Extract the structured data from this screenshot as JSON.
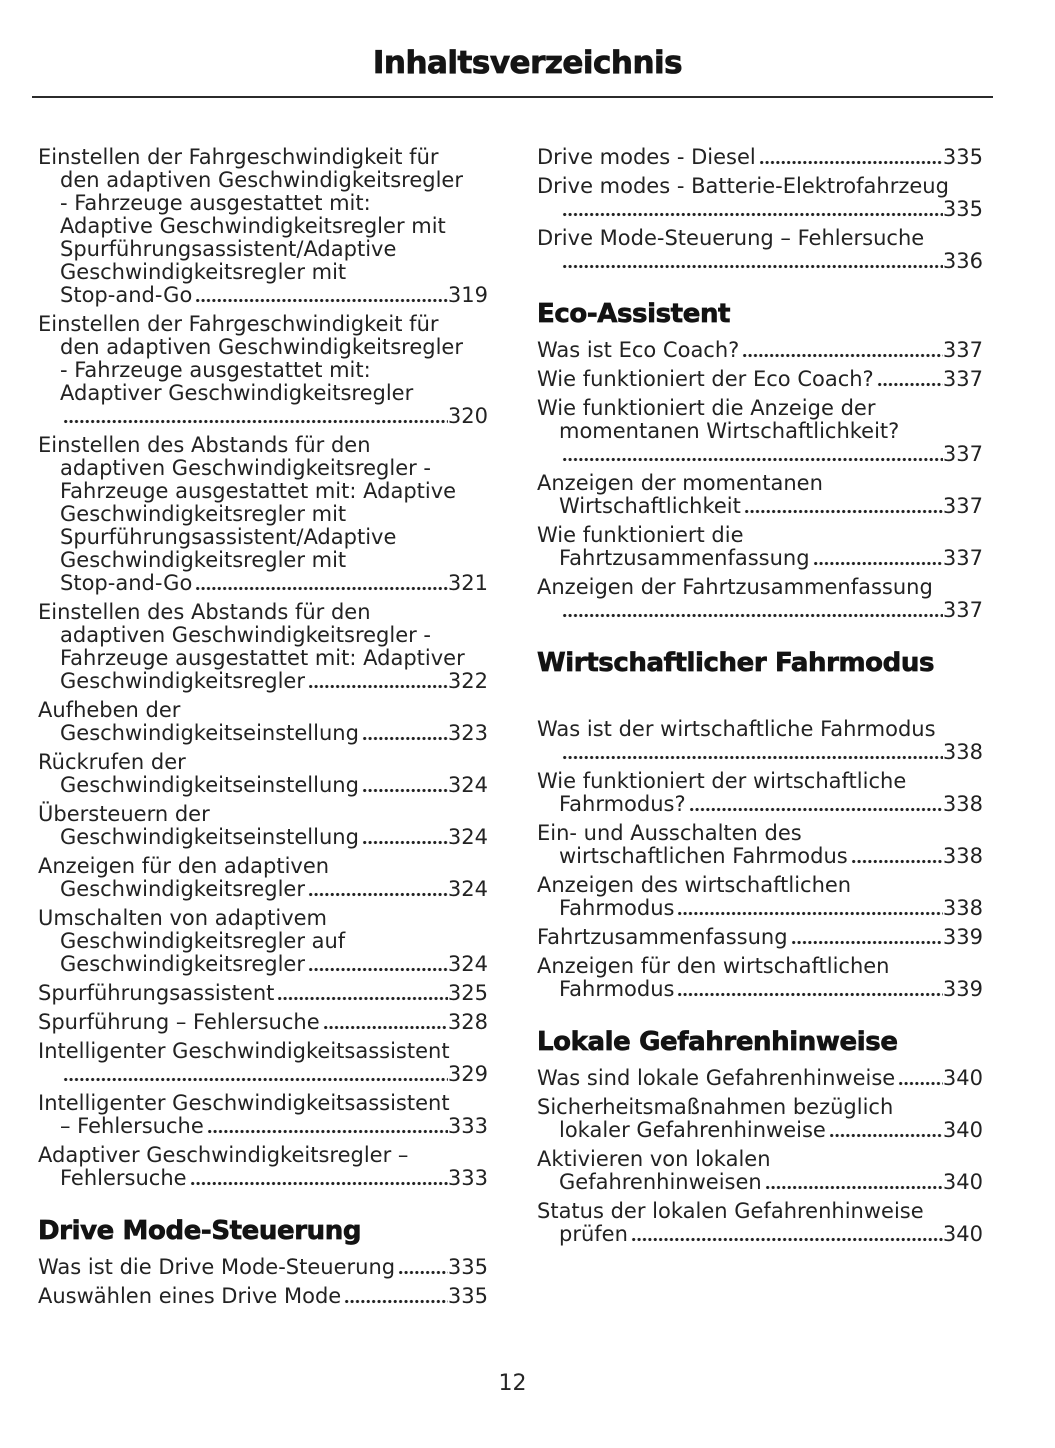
{
  "doc": {
    "title": "Inhaltsverzeichnis",
    "page_number": "12",
    "ink_color": "#222222"
  },
  "toc": {
    "columns": [
      {
        "name": "left",
        "items": [
          {
            "lines": [
              "Einstellen der Fahrgeschwindigkeit für",
              "den adaptiven Geschwindigkeitsregler",
              "- Fahrzeuge ausgestattet mit:",
              "Adaptive Geschwindigkeitsregler mit",
              "Spurführungsassistent/Adaptive",
              "Geschwindigkeitsregler mit",
              "Stop-and-Go"
            ],
            "page": "319"
          },
          {
            "lines": [
              "Einstellen der Fahrgeschwindigkeit für",
              "den adaptiven Geschwindigkeitsregler",
              "- Fahrzeuge ausgestattet mit:",
              "Adaptiver Geschwindigkeitsregler",
              ""
            ],
            "page": "320"
          },
          {
            "lines": [
              "Einstellen des Abstands für den",
              "adaptiven Geschwindigkeitsregler -",
              "Fahrzeuge ausgestattet mit: Adaptive",
              "Geschwindigkeitsregler mit",
              "Spurführungsassistent/Adaptive",
              "Geschwindigkeitsregler mit",
              "Stop-and-Go"
            ],
            "page": "321"
          },
          {
            "lines": [
              "Einstellen des Abstands für den",
              "adaptiven Geschwindigkeitsregler -",
              "Fahrzeuge ausgestattet mit: Adaptiver",
              "Geschwindigkeitsregler"
            ],
            "page": "322"
          },
          {
            "lines": [
              "Aufheben der",
              "Geschwindigkeitseinstellung"
            ],
            "page": "323"
          },
          {
            "lines": [
              "Rückrufen der",
              "Geschwindigkeitseinstellung"
            ],
            "page": "324"
          },
          {
            "lines": [
              "Übersteuern der",
              "Geschwindigkeitseinstellung"
            ],
            "page": "324"
          },
          {
            "lines": [
              "Anzeigen für den adaptiven",
              "Geschwindigkeitsregler"
            ],
            "page": "324"
          },
          {
            "lines": [
              "Umschalten von adaptivem",
              "Geschwindigkeitsregler auf",
              "Geschwindigkeitsregler"
            ],
            "page": "324"
          },
          {
            "lines": [
              "Spurführungsassistent"
            ],
            "page": "325"
          },
          {
            "lines": [
              "Spurführung – Fehlersuche"
            ],
            "page": "328"
          },
          {
            "lines": [
              "Intelligenter Geschwindigkeitsassistent",
              ""
            ],
            "page": "329"
          },
          {
            "lines": [
              "Intelligenter Geschwindigkeitsassistent",
              "– Fehlersuche"
            ],
            "page": "333"
          },
          {
            "lines": [
              "Adaptiver Geschwindigkeitsregler –",
              "Fehlersuche"
            ],
            "page": "333"
          },
          {
            "heading": "Drive Mode-Steuerung"
          },
          {
            "lines": [
              "Was ist die Drive Mode-Steuerung"
            ],
            "page": "335"
          },
          {
            "lines": [
              "Auswählen eines Drive Mode"
            ],
            "page": "335"
          }
        ]
      },
      {
        "name": "right",
        "items": [
          {
            "lines": [
              "Drive modes - Diesel"
            ],
            "page": "335"
          },
          {
            "lines": [
              "Drive modes - Batterie-Elektrofahrzeug",
              ""
            ],
            "page": "335"
          },
          {
            "lines": [
              "Drive Mode-Steuerung – Fehlersuche",
              ""
            ],
            "page": "336"
          },
          {
            "heading": "Eco-Assistent"
          },
          {
            "lines": [
              "Was ist Eco Coach?"
            ],
            "page": "337"
          },
          {
            "lines": [
              "Wie funktioniert der Eco Coach?"
            ],
            "page": "337"
          },
          {
            "lines": [
              "Wie funktioniert die Anzeige der",
              "momentanen Wirtschaftlichkeit?",
              ""
            ],
            "page": "337"
          },
          {
            "lines": [
              "Anzeigen der momentanen",
              "Wirtschaftlichkeit"
            ],
            "page": "337"
          },
          {
            "lines": [
              "Wie funktioniert die",
              "Fahrtzusammenfassung"
            ],
            "page": "337"
          },
          {
            "lines": [
              "Anzeigen der Fahrtzusammenfassung",
              ""
            ],
            "page": "337"
          },
          {
            "heading": "Wirtschaftlicher Fahrmodus",
            "gap_after": true
          },
          {
            "lines": [
              "Was ist der wirtschaftliche Fahrmodus",
              ""
            ],
            "page": "338"
          },
          {
            "lines": [
              "Wie funktioniert der wirtschaftliche",
              "Fahrmodus?"
            ],
            "page": "338"
          },
          {
            "lines": [
              "Ein- und Ausschalten des",
              "wirtschaftlichen Fahrmodus"
            ],
            "page": "338"
          },
          {
            "lines": [
              "Anzeigen des wirtschaftlichen",
              "Fahrmodus"
            ],
            "page": "338"
          },
          {
            "lines": [
              "Fahrtzusammenfassung"
            ],
            "page": "339"
          },
          {
            "lines": [
              "Anzeigen für den wirtschaftlichen",
              "Fahrmodus"
            ],
            "page": "339"
          },
          {
            "heading": "Lokale Gefahrenhinweise"
          },
          {
            "lines": [
              "Was sind lokale Gefahrenhinweise"
            ],
            "page": "340"
          },
          {
            "lines": [
              "Sicherheitsmaßnahmen bezüglich",
              "lokaler Gefahrenhinweise"
            ],
            "page": "340"
          },
          {
            "lines": [
              "Aktivieren von lokalen",
              "Gefahrenhinweisen"
            ],
            "page": "340"
          },
          {
            "lines": [
              "Status der lokalen Gefahrenhinweise",
              "prüfen"
            ],
            "page": "340"
          }
        ]
      }
    ]
  }
}
